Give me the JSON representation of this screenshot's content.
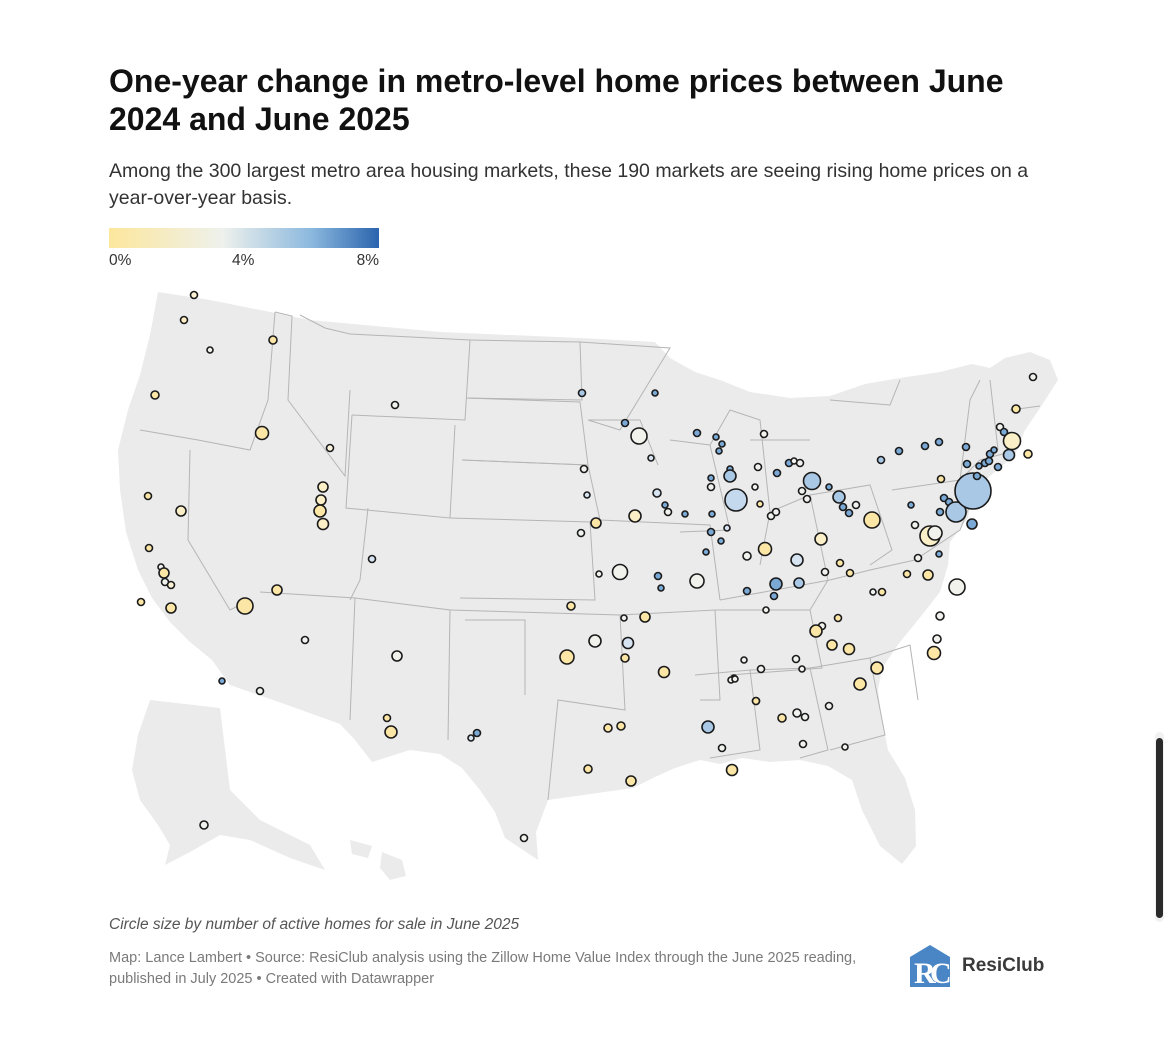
{
  "header": {
    "title": "One-year change in metro-level home prices between June 2024 and June 2025",
    "subtitle": "Among the 300 largest metro area housing markets, these 190 markets are seeing rising home prices on a year-over-year basis."
  },
  "legend": {
    "ticks": [
      "0%",
      "4%",
      "8%"
    ],
    "colors": {
      "low": "#fde79c",
      "mid": "#eef1ec",
      "high": "#2a64ad"
    }
  },
  "footer": {
    "size_note": "Circle size by number of active homes for sale in June 2025",
    "source": "Map: Lance Lambert • Source: ResiClub analysis using the Zillow Home Value Index through the June 2025 reading, published in July 2025 • Created with Datawrapper",
    "brand": "ResiClub",
    "brand_color": "#4a86c5"
  },
  "map": {
    "land_color": "#ebebeb",
    "border_color": "#b5b5b5",
    "marker_outline": "#1a1a1a"
  }
}
